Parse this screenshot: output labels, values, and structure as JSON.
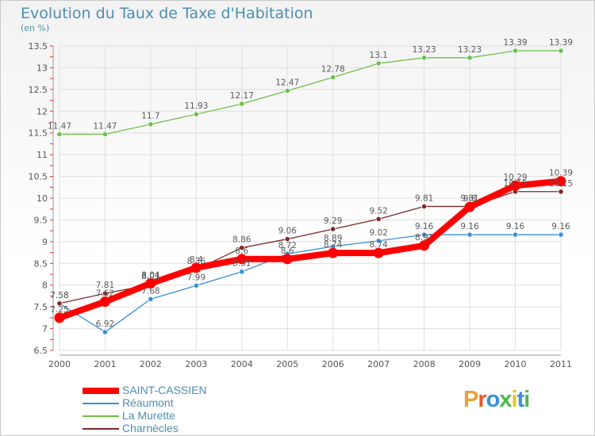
{
  "title": "Evolution du Taux de Taxe d'Habitation",
  "unit_label": "(en %)",
  "brand": {
    "letters": [
      "P",
      "r",
      "o",
      "x",
      "i",
      "t",
      "i"
    ],
    "colors": [
      "#e8a23a",
      "#e85a2b",
      "#3a8fd6",
      "#4cb848",
      "#e8c420",
      "#3a8fd6",
      "#4cb848"
    ]
  },
  "chart_data": {
    "type": "line",
    "x": [
      "2000",
      "2001",
      "2002",
      "2003",
      "2004",
      "2005",
      "2006",
      "2007",
      "2008",
      "2009",
      "2010",
      "2011"
    ],
    "ylim": [
      6.5,
      13.5
    ],
    "yticks": [
      "6.5",
      "7",
      "7.5",
      "8",
      "8.5",
      "9",
      "9.5",
      "10",
      "10.5",
      "11",
      "11.5",
      "12",
      "12.5",
      "13",
      "13.5"
    ],
    "grid": true,
    "legend_position": "bottom-left",
    "series": [
      {
        "name": "SAINT-CASSIEN",
        "color": "#ff0000",
        "labels": [
          "7.25",
          "7.62",
          "8.04",
          "8.4",
          "8.6",
          "8.6",
          "8.74",
          "8.74",
          "8.91",
          "9.8",
          "10.29",
          "10.39"
        ],
        "values": [
          7.25,
          7.62,
          8.04,
          8.4,
          8.6,
          8.6,
          8.74,
          8.74,
          8.91,
          9.8,
          10.29,
          10.39
        ]
      },
      {
        "name": "Réaumont",
        "color": "#3a8fd6",
        "labels": [
          "7.58",
          "6.92",
          "7.68",
          "7.99",
          "8.31",
          "8.72",
          "8.89",
          "9.02",
          "9.16",
          "9.16",
          "9.16",
          "9.16"
        ],
        "values": [
          7.58,
          6.92,
          7.68,
          7.99,
          8.31,
          8.72,
          8.89,
          9.02,
          9.16,
          9.16,
          9.16,
          9.16
        ]
      },
      {
        "name": "La Murette",
        "color": "#6cc04a",
        "labels": [
          "11.47",
          "11.47",
          "11.7",
          "11.93",
          "12.17",
          "12.47",
          "12.78",
          "13.1",
          "13.23",
          "13.23",
          "13.39",
          "13.39"
        ],
        "values": [
          11.47,
          11.47,
          11.7,
          11.93,
          12.17,
          12.47,
          12.78,
          13.1,
          13.23,
          13.23,
          13.39,
          13.39
        ]
      },
      {
        "name": "Charnècles",
        "color": "#7a2a2a",
        "labels": [
          "7.58",
          "7.81",
          "8.01",
          "8.36",
          "8.86",
          "9.06",
          "9.29",
          "9.52",
          "9.81",
          "9.81",
          "10.15",
          "10.15"
        ],
        "values": [
          7.58,
          7.81,
          8.01,
          8.36,
          8.86,
          9.06,
          9.29,
          9.52,
          9.81,
          9.81,
          10.15,
          10.15
        ]
      }
    ]
  }
}
